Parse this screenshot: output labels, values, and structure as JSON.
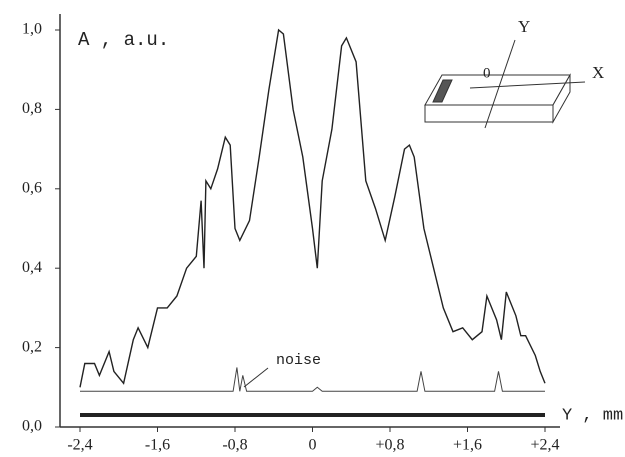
{
  "chart_data": {
    "type": "line",
    "y_label": "A , a.u.",
    "x_label": "Y , mm",
    "annotation": "noise",
    "inset_labels": {
      "y": "Y",
      "origin": "0",
      "x": "X"
    },
    "xlim": [
      -2.4,
      2.4
    ],
    "xticks": [
      {
        "value": -2.4,
        "label": "-2,4"
      },
      {
        "value": -1.6,
        "label": "-1,6"
      },
      {
        "value": -0.8,
        "label": "-0,8"
      },
      0,
      {
        "value": 0.8,
        "label": "+0,8"
      },
      {
        "value": 1.6,
        "label": "+1,6"
      },
      {
        "value": 2.4,
        "label": "+2,4"
      }
    ],
    "ylim": [
      0,
      1
    ],
    "yticks": [
      {
        "value": 0,
        "label": "0,0"
      },
      {
        "value": 0.2,
        "label": "0,2"
      },
      {
        "value": 0.4,
        "label": "0,4"
      },
      {
        "value": 0.6,
        "label": "0,6"
      },
      {
        "value": 0.8,
        "label": "0,8"
      },
      {
        "value": 1,
        "label": "1,0"
      }
    ],
    "grid": false,
    "series": [
      {
        "color": "#222222",
        "x": [
          -2.4,
          -2.35,
          -2.25,
          -2.2,
          -2.1,
          -2.05,
          -1.95,
          -1.85,
          -1.8,
          -1.7,
          -1.6,
          -1.5,
          -1.4,
          -1.3,
          -1.2,
          -1.15,
          -1.12,
          -1.1,
          -1.05,
          -0.98,
          -0.9,
          -0.85,
          -0.8,
          -0.75,
          -0.65,
          -0.55,
          -0.45,
          -0.35,
          -0.3,
          -0.2,
          -0.1,
          0.0,
          0.05,
          0.1,
          0.2,
          0.3,
          0.35,
          0.45,
          0.55,
          0.65,
          0.75,
          0.85,
          0.95,
          1.0,
          1.05,
          1.15,
          1.25,
          1.35,
          1.45,
          1.55,
          1.65,
          1.75,
          1.8,
          1.9,
          1.95,
          2.0,
          2.1,
          2.15,
          2.2,
          2.3,
          2.35,
          2.4
        ],
        "values": [
          0.1,
          0.16,
          0.16,
          0.13,
          0.19,
          0.14,
          0.11,
          0.22,
          0.25,
          0.2,
          0.3,
          0.3,
          0.33,
          0.4,
          0.43,
          0.57,
          0.4,
          0.62,
          0.6,
          0.65,
          0.73,
          0.71,
          0.5,
          0.47,
          0.52,
          0.68,
          0.85,
          1.0,
          0.99,
          0.8,
          0.68,
          0.5,
          0.4,
          0.62,
          0.75,
          0.96,
          0.98,
          0.92,
          0.62,
          0.55,
          0.47,
          0.58,
          0.7,
          0.71,
          0.68,
          0.5,
          0.4,
          0.3,
          0.24,
          0.25,
          0.22,
          0.24,
          0.33,
          0.27,
          0.22,
          0.34,
          0.28,
          0.23,
          0.23,
          0.18,
          0.14,
          0.11
        ]
      },
      {
        "color": "#444444",
        "x": [
          -2.4,
          -1.6,
          -0.82,
          -0.78,
          -0.75,
          -0.72,
          -0.68,
          0.0,
          0.05,
          0.1,
          1.08,
          1.12,
          1.16,
          1.88,
          1.92,
          1.96,
          2.4
        ],
        "values": [
          0.09,
          0.09,
          0.09,
          0.15,
          0.09,
          0.13,
          0.09,
          0.09,
          0.1,
          0.09,
          0.09,
          0.14,
          0.09,
          0.09,
          0.14,
          0.09,
          0.09
        ]
      }
    ]
  }
}
